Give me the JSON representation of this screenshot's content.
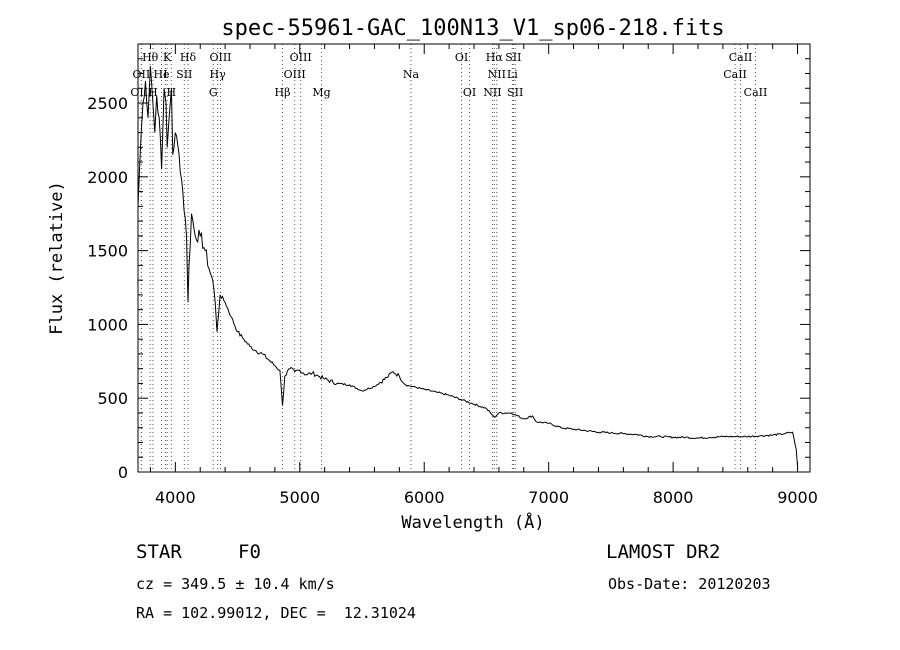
{
  "chart_data": {
    "type": "line",
    "title": "spec-55961-GAC_100N13_V1_sp06-218.fits",
    "xlabel": "Wavelength (Å)",
    "ylabel": "Flux (relative)",
    "xlim": [
      3700,
      9100
    ],
    "ylim": [
      0,
      2900
    ],
    "xticks": [
      4000,
      5000,
      6000,
      7000,
      8000,
      9000
    ],
    "yticks": [
      0,
      500,
      1000,
      1500,
      2000,
      2500
    ],
    "grid": false,
    "series": [
      {
        "name": "spectrum",
        "x": [
          3700,
          3720,
          3740,
          3760,
          3780,
          3800,
          3820,
          3835,
          3850,
          3870,
          3890,
          3910,
          3925,
          3935,
          3950,
          3968,
          3980,
          4000,
          4030,
          4060,
          4090,
          4102,
          4110,
          4130,
          4160,
          4200,
          4240,
          4280,
          4300,
          4320,
          4335,
          4340,
          4360,
          4400,
          4450,
          4500,
          4550,
          4600,
          4650,
          4700,
          4750,
          4800,
          4840,
          4861,
          4880,
          4920,
          4960,
          5000,
          5050,
          5100,
          5150,
          5200,
          5300,
          5400,
          5500,
          5600,
          5700,
          5750,
          5800,
          5850,
          5900,
          6000,
          6100,
          6200,
          6300,
          6400,
          6500,
          6563,
          6600,
          6700,
          6800,
          6870,
          6900,
          7000,
          7100,
          7200,
          7300,
          7400,
          7500,
          7600,
          7700,
          7800,
          7900,
          8000,
          8100,
          8200,
          8300,
          8400,
          8500,
          8600,
          8700,
          8800,
          8900,
          8960,
          8990,
          9000
        ],
        "y": [
          1800,
          2200,
          2500,
          2650,
          2400,
          2750,
          2500,
          2300,
          2550,
          2400,
          2050,
          2600,
          2500,
          2200,
          2400,
          2600,
          2150,
          2300,
          2150,
          1900,
          1600,
          1150,
          1400,
          1750,
          1600,
          1600,
          1500,
          1350,
          1300,
          1150,
          950,
          1000,
          1200,
          1150,
          1050,
          950,
          900,
          850,
          820,
          800,
          760,
          720,
          690,
          450,
          650,
          700,
          680,
          690,
          660,
          670,
          650,
          630,
          600,
          590,
          550,
          580,
          640,
          680,
          650,
          590,
          580,
          560,
          540,
          520,
          490,
          460,
          430,
          370,
          400,
          400,
          360,
          380,
          340,
          330,
          300,
          290,
          280,
          270,
          265,
          260,
          255,
          240,
          240,
          235,
          235,
          230,
          235,
          240,
          240,
          240,
          245,
          250,
          260,
          270,
          150,
          30
        ]
      }
    ],
    "spectral_lines": [
      {
        "label": "Hθ",
        "x": 3798,
        "row": 1
      },
      {
        "label": "K",
        "x": 3934,
        "row": 1
      },
      {
        "label": "Hδ",
        "x": 4102,
        "row": 1
      },
      {
        "label": "OIII",
        "x": 4363,
        "row": 1
      },
      {
        "label": "OIII",
        "x": 5007,
        "row": 1
      },
      {
        "label": "OI",
        "x": 6300,
        "row": 1
      },
      {
        "label": "Hα",
        "x": 6563,
        "row": 1
      },
      {
        "label": "SII",
        "x": 6716,
        "row": 1
      },
      {
        "label": "CaII",
        "x": 8542,
        "row": 1
      },
      {
        "label": "OII",
        "x": 3727,
        "row": 2
      },
      {
        "label": "He",
        "x": 3889,
        "row": 2
      },
      {
        "label": "I",
        "x": 3920,
        "row": 2
      },
      {
        "label": "SII",
        "x": 4072,
        "row": 2
      },
      {
        "label": "Hγ",
        "x": 4340,
        "row": 2
      },
      {
        "label": "OIII",
        "x": 4959,
        "row": 2
      },
      {
        "label": "Na",
        "x": 5893,
        "row": 2
      },
      {
        "label": "NII",
        "x": 6583,
        "row": 2
      },
      {
        "label": "Li",
        "x": 6708,
        "row": 2
      },
      {
        "label": "CaII",
        "x": 8498,
        "row": 2
      },
      {
        "label": "OIII",
        "x": 3727,
        "row": 3
      },
      {
        "label": "H",
        "x": 3820,
        "row": 3
      },
      {
        "label": "H",
        "x": 3968,
        "row": 3
      },
      {
        "label": "G",
        "x": 4305,
        "row": 3
      },
      {
        "label": "Hβ",
        "x": 4861,
        "row": 3
      },
      {
        "label": "Mg",
        "x": 5175,
        "row": 3
      },
      {
        "label": "OI",
        "x": 6364,
        "row": 3
      },
      {
        "label": "NII",
        "x": 6548,
        "row": 3
      },
      {
        "label": "SII",
        "x": 6731,
        "row": 3
      },
      {
        "label": "CaII",
        "x": 8662,
        "row": 3
      }
    ]
  },
  "info": {
    "object_class": "STAR",
    "subclass": "F0",
    "survey": "LAMOST DR2",
    "redshift": "cz = 349.5 ± 10.4 km/s",
    "obs_date": "Obs-Date: 20120203",
    "coords": "RA = 102.99012, DEC =  12.31024"
  }
}
